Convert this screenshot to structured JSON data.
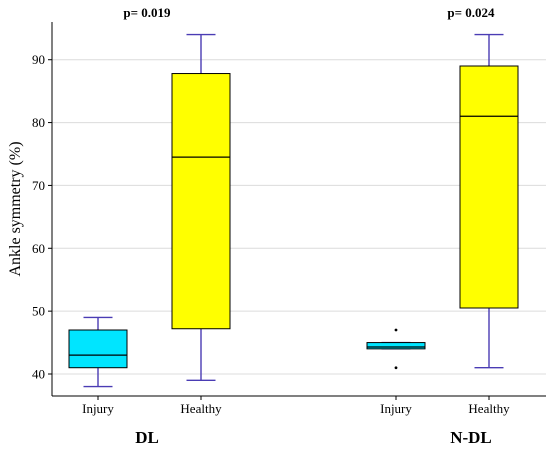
{
  "chart_data": {
    "type": "box",
    "ylabel": "Ankle symmetry (%)",
    "ylim": [
      36.5,
      96
    ],
    "yticks": [
      40,
      50,
      60,
      70,
      80,
      90
    ],
    "grid": "horizontal",
    "panels": [
      {
        "label": "DL",
        "pvalue": "p= 0.019",
        "groups": [
          {
            "category": "Injury",
            "color": "#00e5ff",
            "min": 38,
            "q1": 41,
            "median": 43,
            "q3": 47,
            "max": 49,
            "outliers": []
          },
          {
            "category": "Healthy",
            "color": "#ffff00",
            "min": 39,
            "q1": 47.2,
            "median": 74.5,
            "q3": 87.8,
            "max": 94,
            "outliers": []
          }
        ]
      },
      {
        "label": "N-DL",
        "pvalue": "p= 0.024",
        "groups": [
          {
            "category": "Injury",
            "color": "#00e5ff",
            "min": 44,
            "q1": 44,
            "median": 44.3,
            "q3": 45,
            "max": 45,
            "outliers": [
              41,
              47
            ]
          },
          {
            "category": "Healthy",
            "color": "#ffff00",
            "min": 41,
            "q1": 50.5,
            "median": 81,
            "q3": 89,
            "max": 94,
            "outliers": []
          }
        ]
      }
    ]
  }
}
